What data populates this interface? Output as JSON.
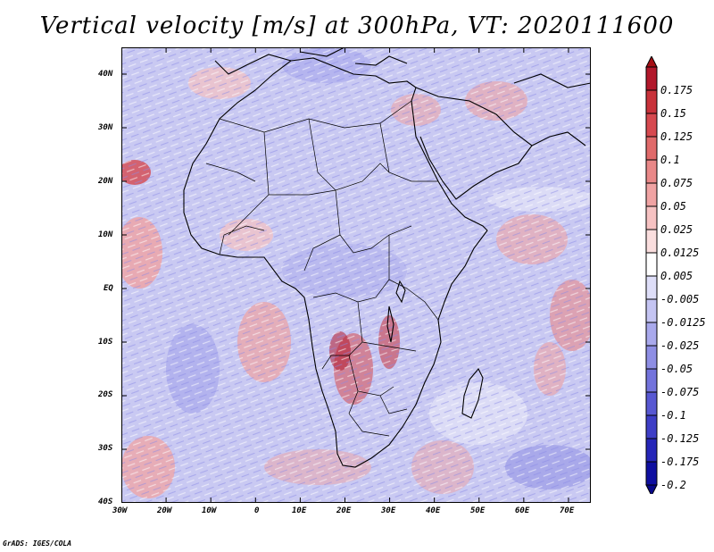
{
  "title": "Vertical velocity [m/s] at 300hPa, VT: 2020111600",
  "map": {
    "lat_labels": [
      "40N",
      "30N",
      "20N",
      "10N",
      "EQ",
      "10S",
      "20S",
      "30S",
      "40S"
    ],
    "lon_labels": [
      "30W",
      "20W",
      "10W",
      "0",
      "10E",
      "20E",
      "30E",
      "40E",
      "50E",
      "60E",
      "70E"
    ],
    "lat_range": [
      -40,
      45
    ],
    "lon_range": [
      -30,
      75
    ],
    "background_color": "#c9c9f2",
    "region": "Africa"
  },
  "colorbar": {
    "levels": [
      "0.175",
      "0.15",
      "0.125",
      "0.1",
      "0.075",
      "0.05",
      "0.025",
      "0.0125",
      "0.005",
      "-0.005",
      "-0.0125",
      "-0.025",
      "-0.05",
      "-0.075",
      "-0.1",
      "-0.125",
      "-0.175",
      "-0.2"
    ],
    "colors": [
      "#b2182b",
      "#c8323a",
      "#d6494f",
      "#e06a6a",
      "#e98888",
      "#f0a3a3",
      "#f6c2c2",
      "#fadede",
      "#ffffff",
      "#dedef8",
      "#c4c4f2",
      "#a9a9ec",
      "#8e8ee4",
      "#7373dc",
      "#5858d2",
      "#3e3ec6",
      "#2626b8",
      "#0f0fa0"
    ],
    "top_color": "#a50f15",
    "bottom_color": "#08088a"
  },
  "credit": "GrADS: IGES/COLA"
}
